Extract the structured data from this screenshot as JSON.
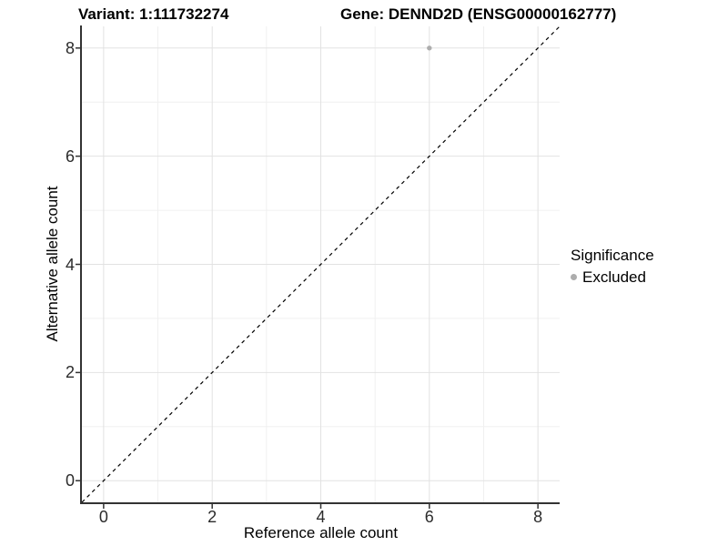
{
  "titles": {
    "variant": "Variant: 1:111732274",
    "gene": "Gene: DENND2D (ENSG00000162777)"
  },
  "axes": {
    "x": {
      "label": "Reference allele count",
      "tick_labels": [
        "0",
        "2",
        "4",
        "6",
        "8"
      ]
    },
    "y": {
      "label": "Alternative allele count",
      "tick_labels": [
        "0",
        "2",
        "4",
        "6",
        "8"
      ]
    }
  },
  "legend": {
    "title": "Significance",
    "items": [
      {
        "label": "Excluded",
        "color": "#adadad"
      }
    ]
  },
  "chart_data": {
    "type": "scatter",
    "title_left": "Variant: 1:111732274",
    "title_right": "Gene: DENND2D (ENSG00000162777)",
    "xlabel": "Reference allele count",
    "ylabel": "Alternative allele count",
    "xlim": [
      -0.4,
      8.4
    ],
    "ylim": [
      -0.4,
      8.4
    ],
    "x_major_ticks": [
      0,
      2,
      4,
      6,
      8
    ],
    "y_major_ticks": [
      0,
      2,
      4,
      6,
      8
    ],
    "x_minor_ticks": [
      1,
      3,
      5,
      7
    ],
    "y_minor_ticks": [
      1,
      3,
      5,
      7
    ],
    "grid": "major+minor",
    "legend_position": "right",
    "series": [
      {
        "name": "Excluded",
        "color": "#adadad",
        "points": [
          {
            "x": 6,
            "y": 8
          }
        ]
      }
    ],
    "reference_line": {
      "type": "identity y=x",
      "style": "dashed",
      "color": "#000000",
      "from": [
        -0.4,
        -0.4
      ],
      "to": [
        8.4,
        8.4
      ]
    }
  },
  "colors": {
    "point": "#adadad",
    "grid_major": "#e2e2e2",
    "grid_minor": "#f0f0f0",
    "axis_line": "#333333",
    "tick_text": "#2b2b2b",
    "background": "#ffffff"
  }
}
